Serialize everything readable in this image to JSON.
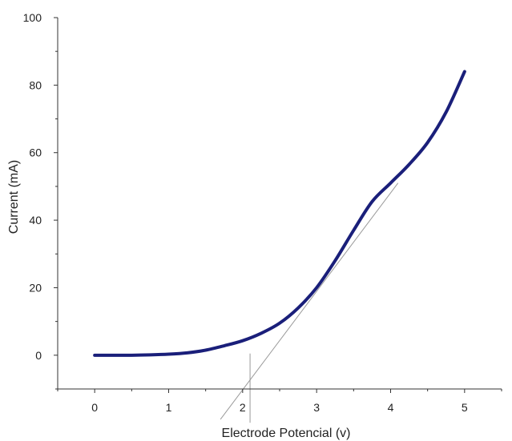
{
  "chart_data": {
    "type": "line",
    "xlabel": "Electrode Potencial (v)",
    "ylabel": "Current (mA)",
    "xlim": [
      -0.5,
      5.5
    ],
    "ylim": [
      -10,
      100
    ],
    "x_ticks": [
      0,
      1,
      2,
      3,
      4,
      5
    ],
    "y_ticks": [
      0,
      20,
      40,
      60,
      80,
      100
    ],
    "grid": false,
    "legend": "none",
    "series": [
      {
        "color": "#1a1f7a",
        "x": [
          0,
          0.25,
          0.5,
          0.75,
          1.0,
          1.25,
          1.5,
          1.75,
          2.0,
          2.25,
          2.5,
          2.75,
          3.0,
          3.25,
          3.5,
          3.75,
          4.0,
          4.25,
          4.5,
          4.75,
          5.0
        ],
        "y": [
          0,
          0,
          0,
          0.1,
          0.3,
          0.7,
          1.5,
          2.8,
          4.3,
          6.5,
          9.5,
          14.0,
          20.0,
          28.0,
          37.0,
          45.5,
          51.0,
          56.5,
          63.0,
          72.0,
          84.0
        ]
      }
    ],
    "annotations": [
      {
        "type": "tangent-line",
        "color": "#999999",
        "from": [
          1.7,
          -19
        ],
        "to": [
          4.1,
          51
        ]
      },
      {
        "type": "vertical-marker",
        "color": "#999999",
        "x": 2.1,
        "y_from": 0.5,
        "y_to": -20
      }
    ]
  }
}
